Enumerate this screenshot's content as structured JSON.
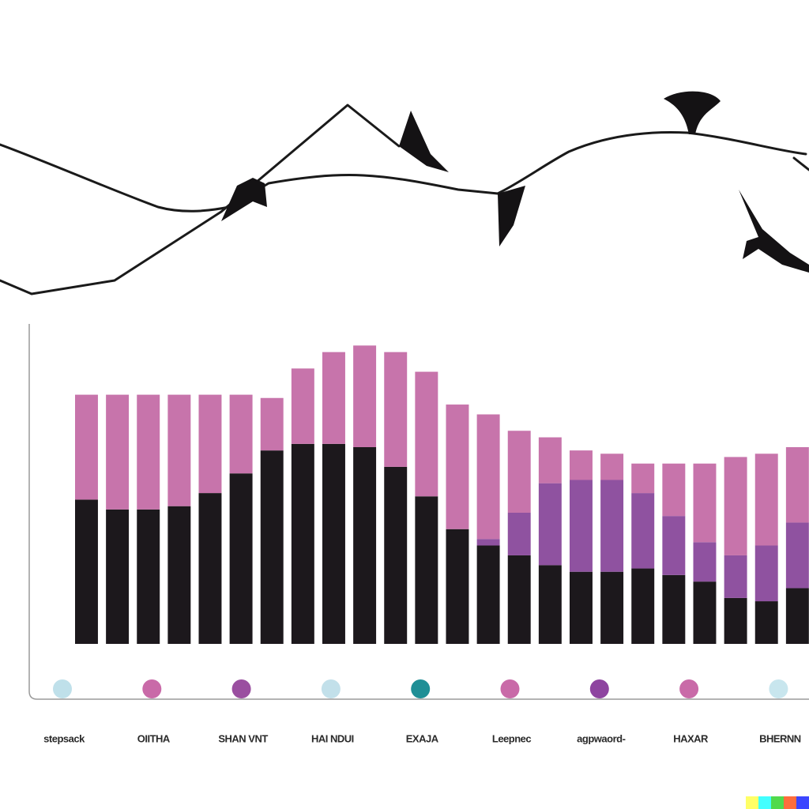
{
  "chart_data": {
    "type": "bar",
    "stacked": true,
    "categories": [
      null,
      null,
      null,
      null,
      null,
      null,
      null,
      null,
      null,
      null,
      null,
      null,
      null,
      null,
      null,
      null,
      null,
      null,
      null,
      null,
      null,
      null,
      null,
      null
    ],
    "series": [
      {
        "color": "#1c181c",
        "values": [
          44,
          41,
          41,
          42,
          46,
          52,
          59,
          61,
          61,
          60,
          54,
          45,
          35,
          30,
          27,
          24,
          22,
          22,
          23,
          21,
          19,
          14,
          13,
          17
        ]
      },
      {
        "color": "#8f52a0",
        "values": [
          0,
          0,
          0,
          0,
          0,
          0,
          0,
          0,
          0,
          0,
          0,
          0,
          0,
          2,
          13,
          25,
          28,
          28,
          23,
          18,
          12,
          13,
          17,
          20
        ]
      },
      {
        "color": "#c774ab",
        "values": [
          32,
          35,
          35,
          34,
          30,
          24,
          16,
          23,
          28,
          31,
          35,
          38,
          38,
          38,
          25,
          14,
          9,
          8,
          9,
          16,
          24,
          30,
          28,
          23
        ]
      }
    ],
    "ylim": [
      0,
      100
    ],
    "markers": [
      {
        "label": "stepsack",
        "color": "#bfe0ea"
      },
      {
        "label": "OIITHA",
        "color": "#c96aa8"
      },
      {
        "label": "SHAN VNT",
        "color": "#9a4fa0"
      },
      {
        "label": "HAI NDUI",
        "color": "#c2e0ea"
      },
      {
        "label": "EXAJA",
        "color": "#1f8f96"
      },
      {
        "label": "Leepnec",
        "color": "#c96aa8"
      },
      {
        "label": "agpwaord-",
        "color": "#8e44a0"
      },
      {
        "label": "HAXAR",
        "color": "#c96aa8"
      },
      {
        "label": "BHERNN",
        "color": "#c8e6ee"
      }
    ]
  }
}
